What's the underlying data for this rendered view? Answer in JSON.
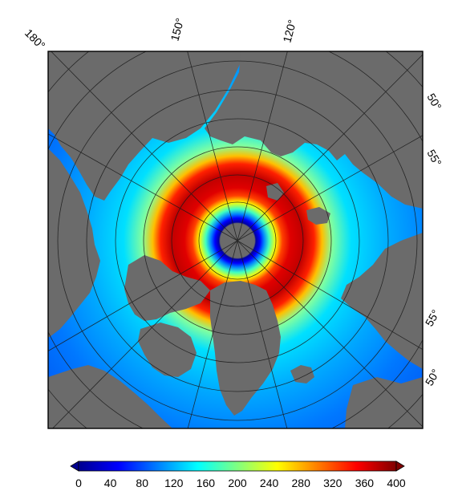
{
  "map": {
    "projection": "north polar stereographic",
    "land_color": "#6b6b6b",
    "grid_color": "#1a1a1a",
    "frame_color": "#000000",
    "longitude_labels": [
      "180°",
      "150°",
      "120°"
    ],
    "latitude_labels_upper": [
      "50°",
      "55°"
    ],
    "latitude_labels_lower": [
      "55°",
      "50°"
    ]
  },
  "colorbar": {
    "min": 0,
    "max": 400,
    "extend": "both",
    "colormap": "jet",
    "tick_labels": [
      "0",
      "40",
      "80",
      "120",
      "160",
      "200",
      "240",
      "280",
      "320",
      "360",
      "400"
    ],
    "colors": [
      "#00008f",
      "#0000ff",
      "#0080ff",
      "#00ffff",
      "#80ff80",
      "#ffff00",
      "#ff8000",
      "#ff0000",
      "#800000"
    ]
  }
}
